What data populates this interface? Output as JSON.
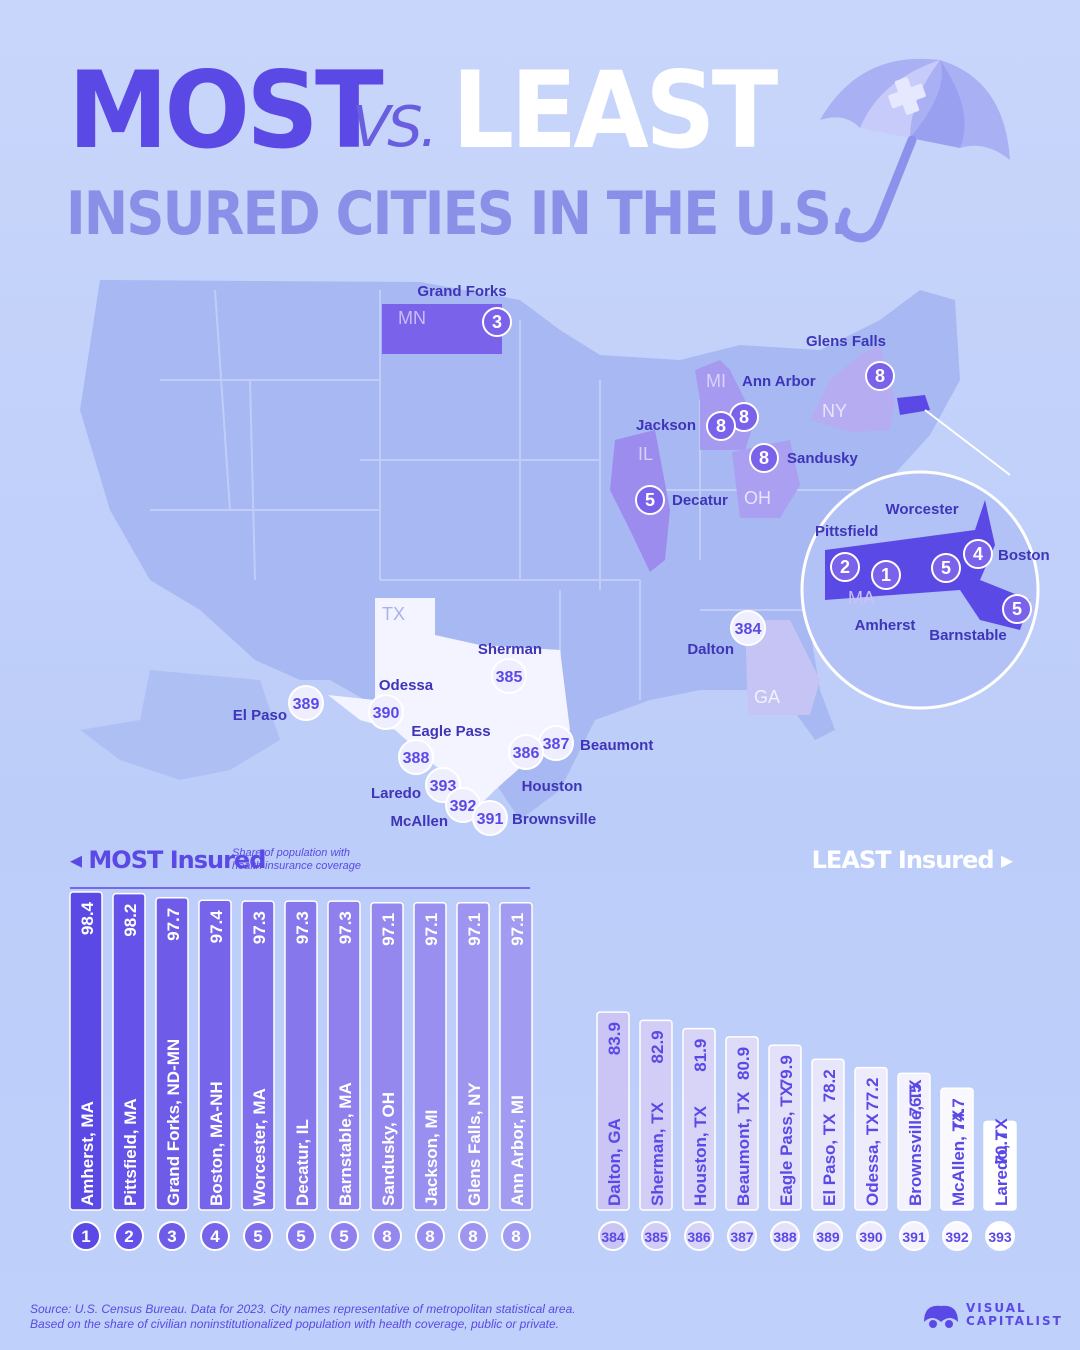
{
  "title": {
    "most": "MOST",
    "vs": "VS.",
    "least": "LEAST",
    "subtitle": "INSURED CITIES IN THE U.S."
  },
  "sections": {
    "most_label": "MOST Insured",
    "most_note": "Share of population with health insurance coverage",
    "least_label": "LEAST Insured"
  },
  "source": {
    "line1": "Source: U.S. Census Bureau. Data for 2023. City names representative of metropolitan statistical area.",
    "line2": "Based on the share of civilian noninstitutionalized population with health coverage, public or private."
  },
  "logo": {
    "line1": "VISUAL",
    "line2": "CAPITALIST"
  },
  "colors": {
    "accent": "#5b49e6",
    "map_land": "#a9baf3",
    "texas": "#f3f4ff"
  },
  "map": {
    "state_labels": [
      "MN",
      "MI",
      "NY",
      "IL",
      "OH",
      "TX",
      "GA",
      "MA"
    ],
    "cities": [
      {
        "name": "Grand Forks",
        "rank": "3"
      },
      {
        "name": "Glens Falls",
        "rank": "8"
      },
      {
        "name": "Ann Arbor",
        "rank": "8"
      },
      {
        "name": "Jackson",
        "rank": "8"
      },
      {
        "name": "Sandusky",
        "rank": "8"
      },
      {
        "name": "Decatur",
        "rank": "5"
      },
      {
        "name": "Pittsfield",
        "rank": "2"
      },
      {
        "name": "Amherst",
        "rank": "1"
      },
      {
        "name": "Worcester",
        "rank": "5"
      },
      {
        "name": "Boston",
        "rank": "4"
      },
      {
        "name": "Barnstable",
        "rank": "5"
      },
      {
        "name": "Dalton",
        "rank": "384"
      },
      {
        "name": "Sherman",
        "rank": "385"
      },
      {
        "name": "Odessa",
        "rank": "390"
      },
      {
        "name": "El Paso",
        "rank": "389"
      },
      {
        "name": "Eagle Pass",
        "rank": "388"
      },
      {
        "name": "Beaumont",
        "rank": "387"
      },
      {
        "name": "Houston",
        "rank": "386"
      },
      {
        "name": "Laredo",
        "rank": "393"
      },
      {
        "name": "McAllen",
        "rank": "392"
      },
      {
        "name": "Brownsville",
        "rank": "391"
      }
    ]
  },
  "chart_data": [
    {
      "type": "bar",
      "categories": [
        "Amherst, MA",
        "Pittsfield, MA",
        "Grand Forks, ND-MN",
        "Boston, MA-NH",
        "Worcester, MA",
        "Decatur, IL",
        "Barnstable, MA",
        "Sandusky, OH",
        "Jackson, MI",
        "Glens Falls, NY",
        "Ann Arbor, MI"
      ],
      "values": [
        98.4,
        98.2,
        97.7,
        97.4,
        97.3,
        97.3,
        97.3,
        97.1,
        97.1,
        97.1,
        97.1
      ],
      "ranks": [
        "1",
        "2",
        "3",
        "4",
        "5",
        "5",
        "5",
        "8",
        "8",
        "8",
        "8"
      ],
      "title": "MOST Insured"
    },
    {
      "type": "bar",
      "categories": [
        "Dalton, GA",
        "Sherman, TX",
        "Houston, TX",
        "Beaumont, TX",
        "Eagle Pass, TX",
        "El Paso, TX",
        "Odessa, TX",
        "Brownsville, TX",
        "McAllen, TX",
        "Laredo, TX"
      ],
      "values": [
        83.9,
        82.9,
        81.9,
        80.9,
        79.9,
        78.2,
        77.2,
        76.5,
        74.7,
        70.7
      ],
      "ranks": [
        "384",
        "385",
        "386",
        "387",
        "388",
        "389",
        "390",
        "391",
        "392",
        "393"
      ],
      "title": "LEAST Insured"
    }
  ]
}
